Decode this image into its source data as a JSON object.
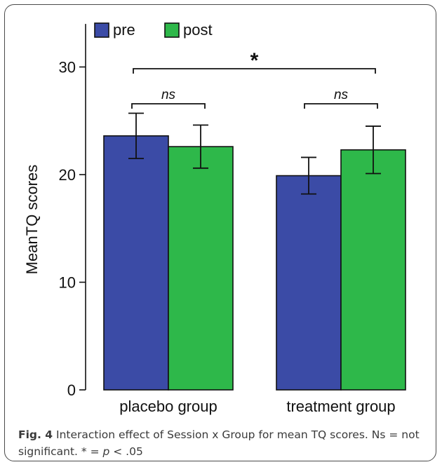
{
  "chart_data": {
    "type": "bar",
    "categories": [
      "placebo group",
      "treatment group"
    ],
    "series": [
      {
        "name": "pre",
        "values": [
          23.6,
          19.9
        ],
        "errors": [
          2.1,
          1.7
        ],
        "color": "#3b4ba6"
      },
      {
        "name": "post",
        "values": [
          22.6,
          22.3
        ],
        "errors": [
          2.0,
          2.2
        ],
        "color": "#2eb84a"
      }
    ],
    "ylabel": "MeanTQ scores",
    "ylim": [
      0,
      34
    ],
    "yticks": [
      0,
      10,
      20,
      30
    ],
    "legend_position": "top-left",
    "grid": false,
    "annotations": [
      {
        "label": "ns",
        "type": "within-group bracket",
        "group": "placebo group"
      },
      {
        "label": "ns",
        "type": "within-group bracket",
        "group": "treatment group"
      },
      {
        "label": "*",
        "type": "between-group bracket"
      }
    ]
  },
  "caption": {
    "fig_label": "Fig. 4",
    "text_1": " Interaction effect of Session x Group for mean TQ scores. Ns = not significant. * = ",
    "p_symbol": "p",
    "text_2": " < .05"
  }
}
